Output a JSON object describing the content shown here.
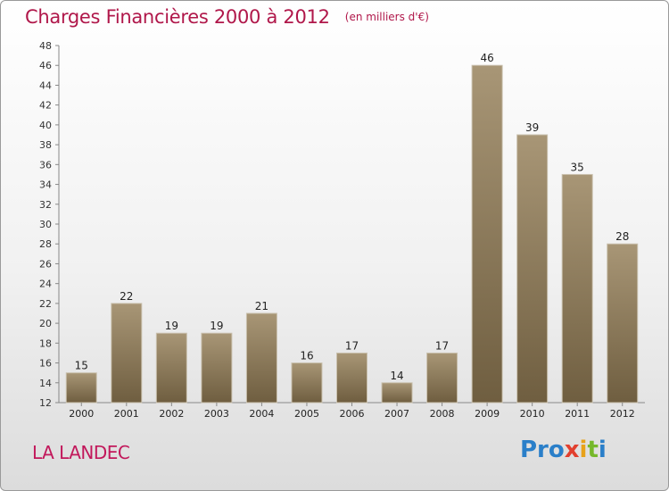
{
  "chart_data": {
    "type": "bar",
    "title": "Charges Financières 2000 à 2012",
    "subtitle": "(en milliers d'€)",
    "categories": [
      "2000",
      "2001",
      "2002",
      "2003",
      "2004",
      "2005",
      "2006",
      "2007",
      "2008",
      "2009",
      "2010",
      "2011",
      "2012"
    ],
    "values": [
      15,
      22,
      19,
      19,
      21,
      16,
      17,
      14,
      17,
      46,
      39,
      35,
      28
    ],
    "ylim": [
      12,
      48
    ],
    "yticks": [
      12,
      14,
      16,
      18,
      20,
      22,
      24,
      26,
      28,
      30,
      32,
      34,
      36,
      38,
      40,
      42,
      44,
      46,
      48
    ],
    "grid": false,
    "bar_color": "#8c7a5b"
  },
  "footer": {
    "place": "LA LANDEC",
    "logo": [
      "Pro",
      "x",
      "i",
      "t",
      "i"
    ]
  },
  "colors": {
    "title": "#b0174a",
    "place": "#c2185b"
  }
}
